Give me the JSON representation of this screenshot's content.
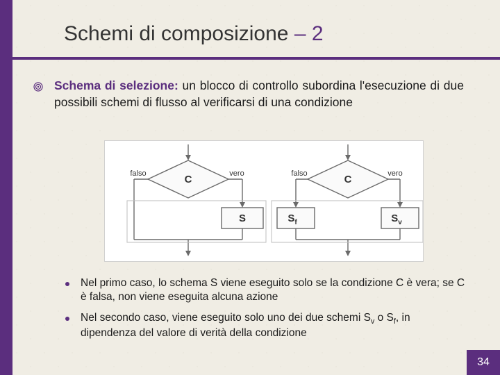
{
  "title_parts": {
    "text": "Schemi di composizione",
    "dash": " – ",
    "num": "2"
  },
  "main_paragraph": {
    "emph": "Schema di selezione:",
    "rest": " un blocco di controllo subordina l'esecuzione di due possibili schemi di flusso al verificarsi di una condizione"
  },
  "diagrams": {
    "left": {
      "condition_label": "C",
      "false_label": "falso",
      "true_label": "vero",
      "block_label": "S"
    },
    "right": {
      "condition_label": "C",
      "false_label": "falso",
      "true_label": "vero",
      "block_false": "S",
      "block_false_sub": "f",
      "block_true": "S",
      "block_true_sub": "v"
    },
    "colors": {
      "bg": "#ffffff",
      "line": "#6a6a6a",
      "diamond_fill": "#fafafa",
      "text": "#333333"
    }
  },
  "sub_points": [
    "Nel primo caso, lo schema S viene eseguito solo se la condizione C è vera; se C è falsa, non viene eseguita alcuna azione",
    "Nel secondo caso, viene eseguito solo uno dei due schemi S<sub>v</sub> o S<sub>f</sub>, in dipendenza del valore di verità della condizione"
  ],
  "page_number": "34",
  "accent_color": "#5b2e7e"
}
